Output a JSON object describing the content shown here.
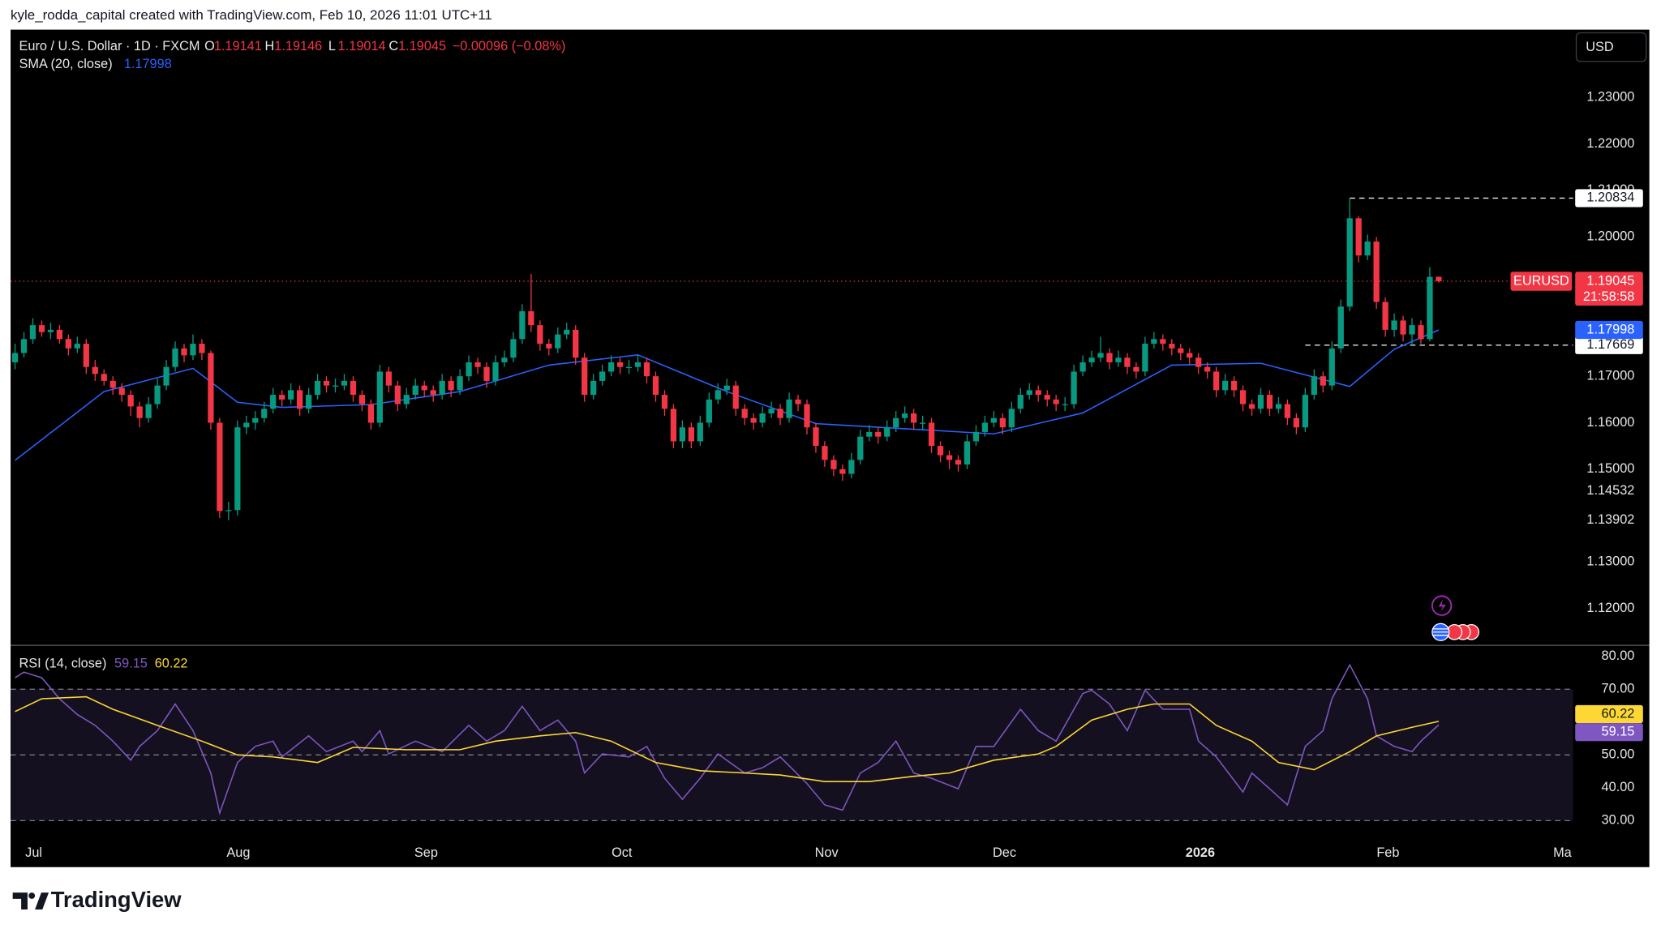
{
  "header": {
    "credit": "kyle_rodda_capital created with TradingView.com, Feb 10, 2026 11:01 UTC+11"
  },
  "footer": {
    "brand": "TradingView"
  },
  "chart_data": {
    "type": "candlestick",
    "symbol_title": "Euro / U.S. Dollar · 1D · FXCM",
    "ohlc_letters": [
      "O",
      "H",
      "L",
      "C"
    ],
    "change": "−0.00096 (−0.08%)",
    "currency": "USD",
    "symbol": "EURUSD",
    "countdown": "21:58:58",
    "up_color": "#089981",
    "down_color": "#f23645",
    "ohlc": [
      [
        1.173,
        1.177,
        1.1715,
        1.175
      ],
      [
        1.175,
        1.1795,
        1.174,
        1.178
      ],
      [
        1.178,
        1.1825,
        1.177,
        1.181
      ],
      [
        1.181,
        1.182,
        1.1785,
        1.1795
      ],
      [
        1.1795,
        1.1815,
        1.178,
        1.18
      ],
      [
        1.18,
        1.181,
        1.177,
        1.178
      ],
      [
        1.178,
        1.179,
        1.1745,
        1.176
      ],
      [
        1.176,
        1.1785,
        1.175,
        1.177
      ],
      [
        1.177,
        1.178,
        1.1705,
        1.172
      ],
      [
        1.172,
        1.1735,
        1.169,
        1.1705
      ],
      [
        1.1705,
        1.1715,
        1.168,
        1.169
      ],
      [
        1.169,
        1.17,
        1.166,
        1.1675
      ],
      [
        1.1675,
        1.1685,
        1.1645,
        1.166
      ],
      [
        1.166,
        1.167,
        1.1615,
        1.1635
      ],
      [
        1.1635,
        1.1645,
        1.159,
        1.161
      ],
      [
        1.161,
        1.1655,
        1.16,
        1.164
      ],
      [
        1.164,
        1.1695,
        1.163,
        1.168
      ],
      [
        1.168,
        1.1735,
        1.167,
        1.172
      ],
      [
        1.172,
        1.1775,
        1.171,
        1.176
      ],
      [
        1.176,
        1.177,
        1.173,
        1.1745
      ],
      [
        1.1745,
        1.179,
        1.1735,
        1.177
      ],
      [
        1.177,
        1.178,
        1.1735,
        1.175
      ],
      [
        1.175,
        1.1755,
        1.1585,
        1.16
      ],
      [
        1.16,
        1.161,
        1.1395,
        1.141
      ],
      [
        1.141,
        1.143,
        1.139,
        1.1412
      ],
      [
        1.1412,
        1.1605,
        1.14,
        1.159
      ],
      [
        1.159,
        1.1615,
        1.1575,
        1.16
      ],
      [
        1.16,
        1.1625,
        1.1585,
        1.161
      ],
      [
        1.161,
        1.1645,
        1.16,
        1.163
      ],
      [
        1.163,
        1.1675,
        1.162,
        1.166
      ],
      [
        1.166,
        1.167,
        1.1635,
        1.165
      ],
      [
        1.165,
        1.1685,
        1.164,
        1.167
      ],
      [
        1.167,
        1.168,
        1.1615,
        1.163
      ],
      [
        1.163,
        1.1675,
        1.162,
        1.166
      ],
      [
        1.166,
        1.1705,
        1.165,
        1.169
      ],
      [
        1.169,
        1.17,
        1.1665,
        1.168
      ],
      [
        1.168,
        1.1695,
        1.1665,
        1.168
      ],
      [
        1.168,
        1.1705,
        1.167,
        1.169
      ],
      [
        1.169,
        1.17,
        1.1645,
        1.166
      ],
      [
        1.166,
        1.167,
        1.1625,
        1.164
      ],
      [
        1.164,
        1.165,
        1.1585,
        1.16
      ],
      [
        1.16,
        1.1725,
        1.159,
        1.171
      ],
      [
        1.171,
        1.172,
        1.1665,
        1.168
      ],
      [
        1.168,
        1.169,
        1.1625,
        1.164
      ],
      [
        1.164,
        1.1675,
        1.163,
        1.166
      ],
      [
        1.166,
        1.1695,
        1.165,
        1.168
      ],
      [
        1.168,
        1.169,
        1.1655,
        1.167
      ],
      [
        1.167,
        1.168,
        1.1645,
        1.166
      ],
      [
        1.166,
        1.1705,
        1.165,
        1.169
      ],
      [
        1.169,
        1.17,
        1.1655,
        1.167
      ],
      [
        1.167,
        1.1715,
        1.166,
        1.17
      ],
      [
        1.17,
        1.1745,
        1.169,
        1.173
      ],
      [
        1.173,
        1.174,
        1.1705,
        1.172
      ],
      [
        1.172,
        1.173,
        1.1675,
        1.169
      ],
      [
        1.169,
        1.1745,
        1.168,
        1.173
      ],
      [
        1.173,
        1.1755,
        1.172,
        1.174
      ],
      [
        1.174,
        1.1795,
        1.173,
        1.178
      ],
      [
        1.178,
        1.1855,
        1.177,
        1.184
      ],
      [
        1.184,
        1.192,
        1.1795,
        1.181
      ],
      [
        1.181,
        1.182,
        1.1755,
        1.177
      ],
      [
        1.177,
        1.178,
        1.1745,
        1.176
      ],
      [
        1.176,
        1.1805,
        1.175,
        1.179
      ],
      [
        1.179,
        1.1815,
        1.178,
        1.18
      ],
      [
        1.18,
        1.181,
        1.1725,
        1.174
      ],
      [
        1.174,
        1.175,
        1.1645,
        1.166
      ],
      [
        1.166,
        1.1705,
        1.165,
        1.169
      ],
      [
        1.169,
        1.1725,
        1.168,
        1.171
      ],
      [
        1.171,
        1.1745,
        1.17,
        1.173
      ],
      [
        1.173,
        1.174,
        1.1705,
        1.172
      ],
      [
        1.172,
        1.1735,
        1.1705,
        1.172
      ],
      [
        1.172,
        1.1745,
        1.171,
        1.173
      ],
      [
        1.173,
        1.174,
        1.1685,
        1.17
      ],
      [
        1.17,
        1.171,
        1.1645,
        1.166
      ],
      [
        1.166,
        1.167,
        1.1615,
        1.163
      ],
      [
        1.163,
        1.164,
        1.1545,
        1.156
      ],
      [
        1.156,
        1.1605,
        1.1545,
        1.159
      ],
      [
        1.159,
        1.16,
        1.1545,
        1.156
      ],
      [
        1.156,
        1.1615,
        1.155,
        1.16
      ],
      [
        1.16,
        1.1665,
        1.159,
        1.165
      ],
      [
        1.165,
        1.1685,
        1.164,
        1.167
      ],
      [
        1.167,
        1.1695,
        1.166,
        1.168
      ],
      [
        1.168,
        1.169,
        1.1615,
        1.163
      ],
      [
        1.163,
        1.164,
        1.1595,
        1.161
      ],
      [
        1.161,
        1.162,
        1.1585,
        1.16
      ],
      [
        1.16,
        1.1635,
        1.159,
        1.162
      ],
      [
        1.162,
        1.1645,
        1.161,
        1.163
      ],
      [
        1.163,
        1.164,
        1.1595,
        1.161
      ],
      [
        1.161,
        1.1665,
        1.16,
        1.165
      ],
      [
        1.165,
        1.166,
        1.1625,
        1.164
      ],
      [
        1.164,
        1.165,
        1.1575,
        1.159
      ],
      [
        1.159,
        1.16,
        1.1535,
        1.155
      ],
      [
        1.155,
        1.156,
        1.1505,
        1.152
      ],
      [
        1.152,
        1.153,
        1.1485,
        1.15
      ],
      [
        1.15,
        1.151,
        1.1475,
        1.149
      ],
      [
        1.149,
        1.1535,
        1.148,
        1.152
      ],
      [
        1.152,
        1.1585,
        1.151,
        1.157
      ],
      [
        1.157,
        1.1595,
        1.156,
        1.158
      ],
      [
        1.158,
        1.159,
        1.1555,
        1.157
      ],
      [
        1.157,
        1.1605,
        1.156,
        1.159
      ],
      [
        1.159,
        1.1625,
        1.158,
        1.161
      ],
      [
        1.161,
        1.1635,
        1.16,
        1.162
      ],
      [
        1.162,
        1.163,
        1.1585,
        1.16
      ],
      [
        1.16,
        1.1615,
        1.1585,
        1.16
      ],
      [
        1.16,
        1.161,
        1.1535,
        1.155
      ],
      [
        1.155,
        1.156,
        1.1515,
        1.153
      ],
      [
        1.153,
        1.154,
        1.15,
        1.152
      ],
      [
        1.152,
        1.153,
        1.1495,
        1.151
      ],
      [
        1.151,
        1.1575,
        1.15,
        1.156
      ],
      [
        1.156,
        1.1595,
        1.155,
        1.158
      ],
      [
        1.158,
        1.1615,
        1.157,
        1.16
      ],
      [
        1.16,
        1.1625,
        1.159,
        1.161
      ],
      [
        1.161,
        1.162,
        1.1575,
        1.159
      ],
      [
        1.159,
        1.1645,
        1.158,
        1.163
      ],
      [
        1.163,
        1.1675,
        1.162,
        1.166
      ],
      [
        1.166,
        1.1685,
        1.165,
        1.167
      ],
      [
        1.167,
        1.168,
        1.1645,
        1.166
      ],
      [
        1.166,
        1.167,
        1.1635,
        1.165
      ],
      [
        1.165,
        1.166,
        1.1625,
        1.164
      ],
      [
        1.164,
        1.1655,
        1.1625,
        1.164
      ],
      [
        1.164,
        1.1725,
        1.163,
        1.171
      ],
      [
        1.171,
        1.1745,
        1.17,
        1.173
      ],
      [
        1.173,
        1.1755,
        1.172,
        1.174
      ],
      [
        1.174,
        1.1785,
        1.173,
        1.175
      ],
      [
        1.175,
        1.176,
        1.1715,
        1.173
      ],
      [
        1.173,
        1.1755,
        1.172,
        1.174
      ],
      [
        1.174,
        1.175,
        1.1705,
        1.172
      ],
      [
        1.172,
        1.173,
        1.1695,
        1.171
      ],
      [
        1.171,
        1.1785,
        1.17,
        1.177
      ],
      [
        1.177,
        1.1795,
        1.176,
        1.178
      ],
      [
        1.178,
        1.179,
        1.1755,
        1.177
      ],
      [
        1.177,
        1.178,
        1.1745,
        1.176
      ],
      [
        1.176,
        1.177,
        1.1735,
        1.175
      ],
      [
        1.175,
        1.176,
        1.1725,
        1.174
      ],
      [
        1.174,
        1.175,
        1.1705,
        1.172
      ],
      [
        1.172,
        1.173,
        1.1695,
        1.171
      ],
      [
        1.171,
        1.172,
        1.1655,
        1.167
      ],
      [
        1.167,
        1.1705,
        1.166,
        1.169
      ],
      [
        1.169,
        1.17,
        1.1655,
        1.167
      ],
      [
        1.167,
        1.168,
        1.1625,
        1.164
      ],
      [
        1.164,
        1.165,
        1.1615,
        1.163
      ],
      [
        1.163,
        1.1675,
        1.162,
        1.166
      ],
      [
        1.166,
        1.167,
        1.1615,
        1.163
      ],
      [
        1.163,
        1.1655,
        1.162,
        1.164
      ],
      [
        1.164,
        1.165,
        1.1595,
        1.161
      ],
      [
        1.161,
        1.162,
        1.1575,
        1.159
      ],
      [
        1.159,
        1.1675,
        1.158,
        1.166
      ],
      [
        1.166,
        1.1715,
        1.165,
        1.17
      ],
      [
        1.17,
        1.171,
        1.1665,
        1.168
      ],
      [
        1.168,
        1.1775,
        1.167,
        1.176
      ],
      [
        1.176,
        1.1865,
        1.175,
        1.185
      ],
      [
        1.185,
        1.20834,
        1.184,
        1.204
      ],
      [
        1.204,
        1.2045,
        1.1945,
        1.196
      ],
      [
        1.196,
        1.2005,
        1.195,
        1.199
      ],
      [
        1.199,
        1.2,
        1.1845,
        1.186
      ],
      [
        1.186,
        1.187,
        1.1785,
        1.18
      ],
      [
        1.18,
        1.1835,
        1.1785,
        1.182
      ],
      [
        1.182,
        1.183,
        1.1775,
        1.179
      ],
      [
        1.179,
        1.1825,
        1.17669,
        1.181
      ],
      [
        1.181,
        1.182,
        1.177,
        1.178
      ],
      [
        1.178,
        1.1935,
        1.1775,
        1.19141
      ],
      [
        1.19141,
        1.19146,
        1.19014,
        1.19045
      ]
    ],
    "xlim": [
      -0.5,
      175.1
    ],
    "xticks": [
      {
        "value": 2.1,
        "label": "Jul"
      },
      {
        "value": 25.1,
        "label": "Aug"
      },
      {
        "value": 46.2,
        "label": "Sep"
      },
      {
        "value": 68.2,
        "label": "Oct"
      },
      {
        "value": 91.2,
        "label": "Nov"
      },
      {
        "value": 111.2,
        "label": "Dec"
      },
      {
        "value": 133.2,
        "label": "2026"
      },
      {
        "value": 154.3,
        "label": "Feb"
      },
      {
        "value": 173.9,
        "label": "Ma"
      }
    ],
    "ylim": [
      1.1122,
      1.2446
    ],
    "yticks": [
      {
        "value": 1.23,
        "label": "1.23000"
      },
      {
        "value": 1.22,
        "label": "1.22000"
      },
      {
        "value": 1.21,
        "label": "1.21000"
      },
      {
        "value": 1.2,
        "label": "1.20000"
      },
      {
        "value": 1.17,
        "label": "1.17000"
      },
      {
        "value": 1.16,
        "label": "1.16000"
      },
      {
        "value": 1.15,
        "label": "1.15000"
      },
      1.14532,
      1.13902,
      {
        "value": 1.13,
        "label": "1.13000"
      },
      {
        "value": 1.12,
        "label": "1.12000"
      }
    ],
    "level_lines": [
      1.20834,
      1.17669
    ],
    "sma": {
      "name": "SMA (20, close)",
      "color": "#2962ff",
      "x": [
        0,
        10,
        20,
        25,
        30,
        40,
        50,
        60,
        70,
        80,
        90,
        100,
        110,
        120,
        130,
        140,
        150,
        155,
        160
      ],
      "values": [
        1.1519,
        1.1667,
        1.1717,
        1.1644,
        1.1633,
        1.1639,
        1.1667,
        1.1724,
        1.1746,
        1.1667,
        1.1598,
        1.1587,
        1.1576,
        1.1621,
        1.1724,
        1.1728,
        1.1678,
        1.1758,
        1.17998
      ]
    },
    "rsi": {
      "title": "RSI (14, close)",
      "ylim": [
        25.2,
        83.2
      ],
      "yticks": [
        {
          "value": 80,
          "label": "80.00"
        },
        {
          "value": 70,
          "label": "70.00"
        },
        {
          "value": 50,
          "label": "50.00"
        },
        {
          "value": 40,
          "label": "40.00"
        },
        {
          "value": 30,
          "label": "30.00"
        }
      ],
      "levels": [
        70,
        50,
        30
      ],
      "band": [
        30,
        70
      ],
      "series": [
        {
          "color": "#7e57c2",
          "x": [
            0,
            1,
            3,
            5,
            7,
            9,
            11,
            13,
            14,
            16,
            18,
            20,
            22,
            23,
            25,
            27,
            29,
            30,
            33,
            35,
            38,
            39,
            41,
            42,
            45,
            48,
            51,
            53,
            55,
            57,
            59,
            61,
            63,
            64,
            66,
            69,
            71,
            73,
            75,
            77,
            79,
            82,
            84,
            86,
            89,
            91,
            93,
            95,
            97,
            99,
            101,
            103,
            106,
            108,
            110,
            113,
            115,
            117,
            120,
            121,
            123,
            125,
            127,
            129,
            132,
            133,
            135,
            138,
            139,
            141,
            143,
            145,
            147,
            148,
            150,
            152,
            153,
            155,
            157,
            158,
            160
          ],
          "values": [
            73.5,
            75.2,
            73.5,
            67.1,
            62.3,
            59.0,
            54.2,
            48.4,
            52.6,
            57.4,
            65.5,
            57.4,
            44.5,
            32.3,
            47.7,
            52.6,
            54.2,
            49.4,
            55.8,
            51.0,
            54.2,
            51.0,
            57.4,
            50.3,
            54.2,
            51.0,
            59.0,
            54.2,
            57.4,
            64.8,
            57.4,
            60.6,
            54.2,
            44.5,
            50.3,
            49.4,
            52.6,
            42.9,
            36.5,
            42.9,
            50.3,
            44.5,
            46.1,
            49.4,
            41.3,
            34.8,
            33.2,
            44.5,
            47.7,
            54.2,
            44.5,
            42.9,
            39.7,
            52.6,
            52.6,
            63.9,
            57.4,
            54.2,
            68.7,
            69.7,
            65.5,
            57.4,
            69.7,
            63.9,
            63.9,
            54.2,
            49.4,
            38.7,
            44.5,
            39.7,
            34.8,
            52.6,
            57.4,
            67.1,
            77.4,
            67.1,
            55.8,
            52.6,
            51.0,
            54.2,
            59.15
          ]
        },
        {
          "color": "#fdd835",
          "x": [
            0,
            3,
            8,
            11,
            16,
            21,
            25,
            29,
            34,
            38,
            44,
            50,
            54,
            59,
            63,
            67,
            72,
            77,
            82,
            86,
            91,
            96,
            101,
            105,
            110,
            115,
            117,
            121,
            125,
            128,
            132,
            135,
            139,
            142,
            146,
            150,
            153,
            157,
            160
          ],
          "values": [
            63.2,
            67.1,
            67.7,
            63.9,
            59.0,
            54.2,
            50.0,
            49.4,
            47.7,
            52.3,
            51.6,
            51.6,
            54.2,
            55.8,
            56.8,
            54.2,
            47.7,
            45.2,
            44.5,
            43.9,
            41.9,
            41.9,
            43.5,
            44.5,
            48.4,
            50.3,
            52.6,
            60.6,
            63.9,
            65.5,
            65.5,
            59.0,
            54.2,
            47.7,
            45.5,
            51.0,
            55.8,
            58.4,
            60.22
          ]
        }
      ]
    }
  }
}
